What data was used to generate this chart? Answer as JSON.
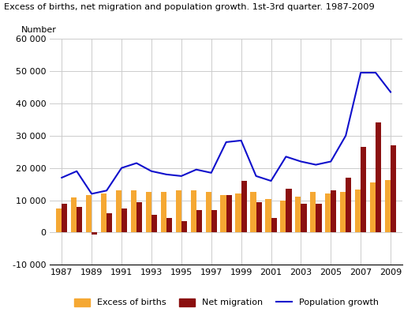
{
  "title": "Excess of births, net migration and population growth. 1st-3rd quarter. 1987-2009",
  "ylabel": "Number",
  "years": [
    1987,
    1988,
    1989,
    1990,
    1991,
    1992,
    1993,
    1994,
    1995,
    1996,
    1997,
    1998,
    1999,
    2000,
    2001,
    2002,
    2003,
    2004,
    2005,
    2006,
    2007,
    2008,
    2009
  ],
  "excess_births": [
    7500,
    10800,
    11500,
    12000,
    13000,
    13000,
    12500,
    12500,
    13000,
    13000,
    12500,
    11500,
    12000,
    12500,
    10500,
    9800,
    11000,
    12500,
    12000,
    12500,
    13200,
    15500,
    16200
  ],
  "net_migration": [
    9000,
    8000,
    -500,
    6000,
    7500,
    9500,
    5500,
    4500,
    3500,
    7000,
    7000,
    11500,
    16000,
    9500,
    4500,
    13500,
    9000,
    9000,
    13000,
    17000,
    26500,
    34000,
    27000
  ],
  "population_growth": [
    17000,
    19000,
    12000,
    13000,
    20000,
    21500,
    19000,
    18000,
    17500,
    19500,
    18500,
    28000,
    28500,
    17500,
    16000,
    23500,
    22000,
    21000,
    22000,
    30000,
    49500,
    49500,
    43500
  ],
  "bar_color_births": "#F5A833",
  "bar_color_migration": "#8B1010",
  "line_color": "#1010CC",
  "background_color": "#ffffff",
  "grid_color": "#cccccc",
  "ylim": [
    -10000,
    60000
  ],
  "yticks": [
    -10000,
    0,
    10000,
    20000,
    30000,
    40000,
    50000,
    60000
  ],
  "ytick_labels": [
    "-10 000",
    "0",
    "10 000",
    "20 000",
    "30 000",
    "40 000",
    "50 000",
    "60 000"
  ],
  "xtick_positions": [
    1987,
    1989,
    1991,
    1993,
    1995,
    1997,
    1999,
    2001,
    2003,
    2005,
    2007,
    2009
  ],
  "xtick_labels": [
    "1987",
    "1989",
    "1991",
    "1993",
    "1995",
    "1997",
    "1999",
    "2001",
    "2003",
    "2005",
    "2007",
    "2009"
  ],
  "legend_labels": [
    "Excess of births",
    "Net migration",
    "Population growth"
  ],
  "bar_width": 0.38
}
